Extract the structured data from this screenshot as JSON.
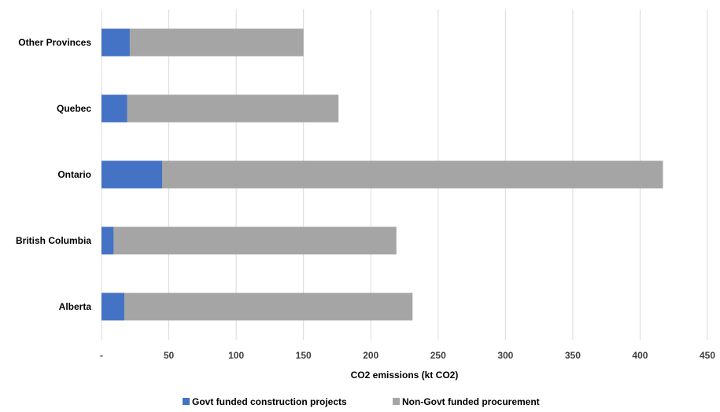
{
  "chart_data": {
    "type": "bar",
    "orientation": "horizontal",
    "stacked": true,
    "categories": [
      "Other Provinces",
      "Quebec",
      "Ontario",
      "British Columbia",
      "Alberta"
    ],
    "series": [
      {
        "name": "Govt funded construction projects",
        "color": "#4472c4",
        "values": [
          21,
          19,
          45,
          9,
          17
        ]
      },
      {
        "name": "Non-Govt funded procurement",
        "color": "#a5a5a5",
        "values": [
          129,
          157,
          372,
          210,
          214
        ]
      }
    ],
    "xlabel": "CO2 emissions (kt CO2)",
    "ylabel": "",
    "xlim": [
      0,
      450
    ],
    "xticks": [
      "-",
      "50",
      "100",
      "150",
      "200",
      "250",
      "300",
      "350",
      "400",
      "450"
    ],
    "grid": "vertical",
    "legend": "bottom"
  }
}
